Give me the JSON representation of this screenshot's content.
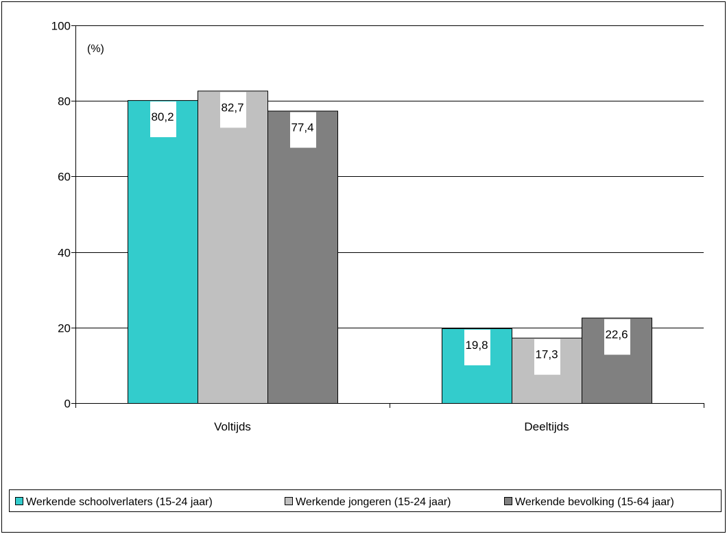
{
  "chart_data": {
    "type": "bar",
    "title": "",
    "ylabel": "(%)",
    "xlabel": "",
    "ylim": [
      0,
      100
    ],
    "yticks": [
      0,
      20,
      40,
      60,
      80,
      100
    ],
    "grid": true,
    "legend_position": "bottom",
    "categories": [
      "Voltijds",
      "Deeltijds"
    ],
    "series": [
      {
        "name": "Werkende schoolverlaters (15-24 jaar)",
        "color": "#33CCCC",
        "values": [
          80.2,
          19.8
        ],
        "labels": [
          "80,2",
          "19,8"
        ]
      },
      {
        "name": "Werkende jongeren (15-24 jaar)",
        "color": "#C0C0C0",
        "values": [
          82.7,
          17.3
        ],
        "labels": [
          "82,7",
          "17,3"
        ]
      },
      {
        "name": "Werkende bevolking (15-64 jaar)",
        "color": "#808080",
        "values": [
          77.4,
          22.6
        ],
        "labels": [
          "77,4",
          "22,6"
        ]
      }
    ]
  }
}
